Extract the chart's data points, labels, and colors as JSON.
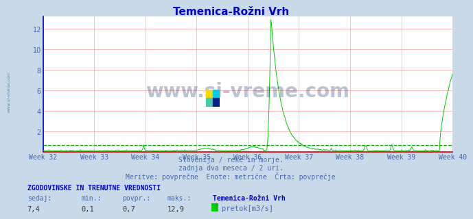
{
  "title": "Temenica-Rožni Vrh",
  "title_color": "#0000cc",
  "bg_color": "#c8daea",
  "plot_bg_color": "#ffffff",
  "grid_color_h": "#ffaaaa",
  "grid_color_v": "#ccbbbb",
  "avg_line_color": "#00aa00",
  "line_color": "#00cc00",
  "x_label_color": "#4466aa",
  "y_label_color": "#4466aa",
  "spine_color_vert": "#0000cc",
  "spine_color_horiz": "#cc0000",
  "weeks": [
    "Week 32",
    "Week 33",
    "Week 34",
    "Week 35",
    "Week 36",
    "Week 37",
    "Week 38",
    "Week 39",
    "Week 40"
  ],
  "ylim": [
    0,
    13.2
  ],
  "yticks": [
    2,
    4,
    6,
    8,
    10,
    12
  ],
  "avg_value": 0.7,
  "subtitle1": "Slovenija / reke in morje.",
  "subtitle2": "zadnja dva meseca / 2 uri.",
  "subtitle3": "Meritve: povprečne  Enote: metrične  Črta: povprečje",
  "footer_title": "ZGODOVINSKE IN TRENUTNE VREDNOSTI",
  "footer_col1": "sedaj:",
  "footer_col2": "min.:",
  "footer_col3": "povpr.:",
  "footer_col4": "maks.:",
  "footer_col5": "Temenica-Rožni Vrh",
  "footer_val1": "7,4",
  "footer_val2": "0,1",
  "footer_val3": "0,7",
  "footer_val4": "12,9",
  "footer_legend": "pretok[m3/s]",
  "watermark": "www.si-vreme.com",
  "watermark_color": "#1a3a6a",
  "left_label": "www.si-vreme.com",
  "left_label_color": "#4488aa"
}
